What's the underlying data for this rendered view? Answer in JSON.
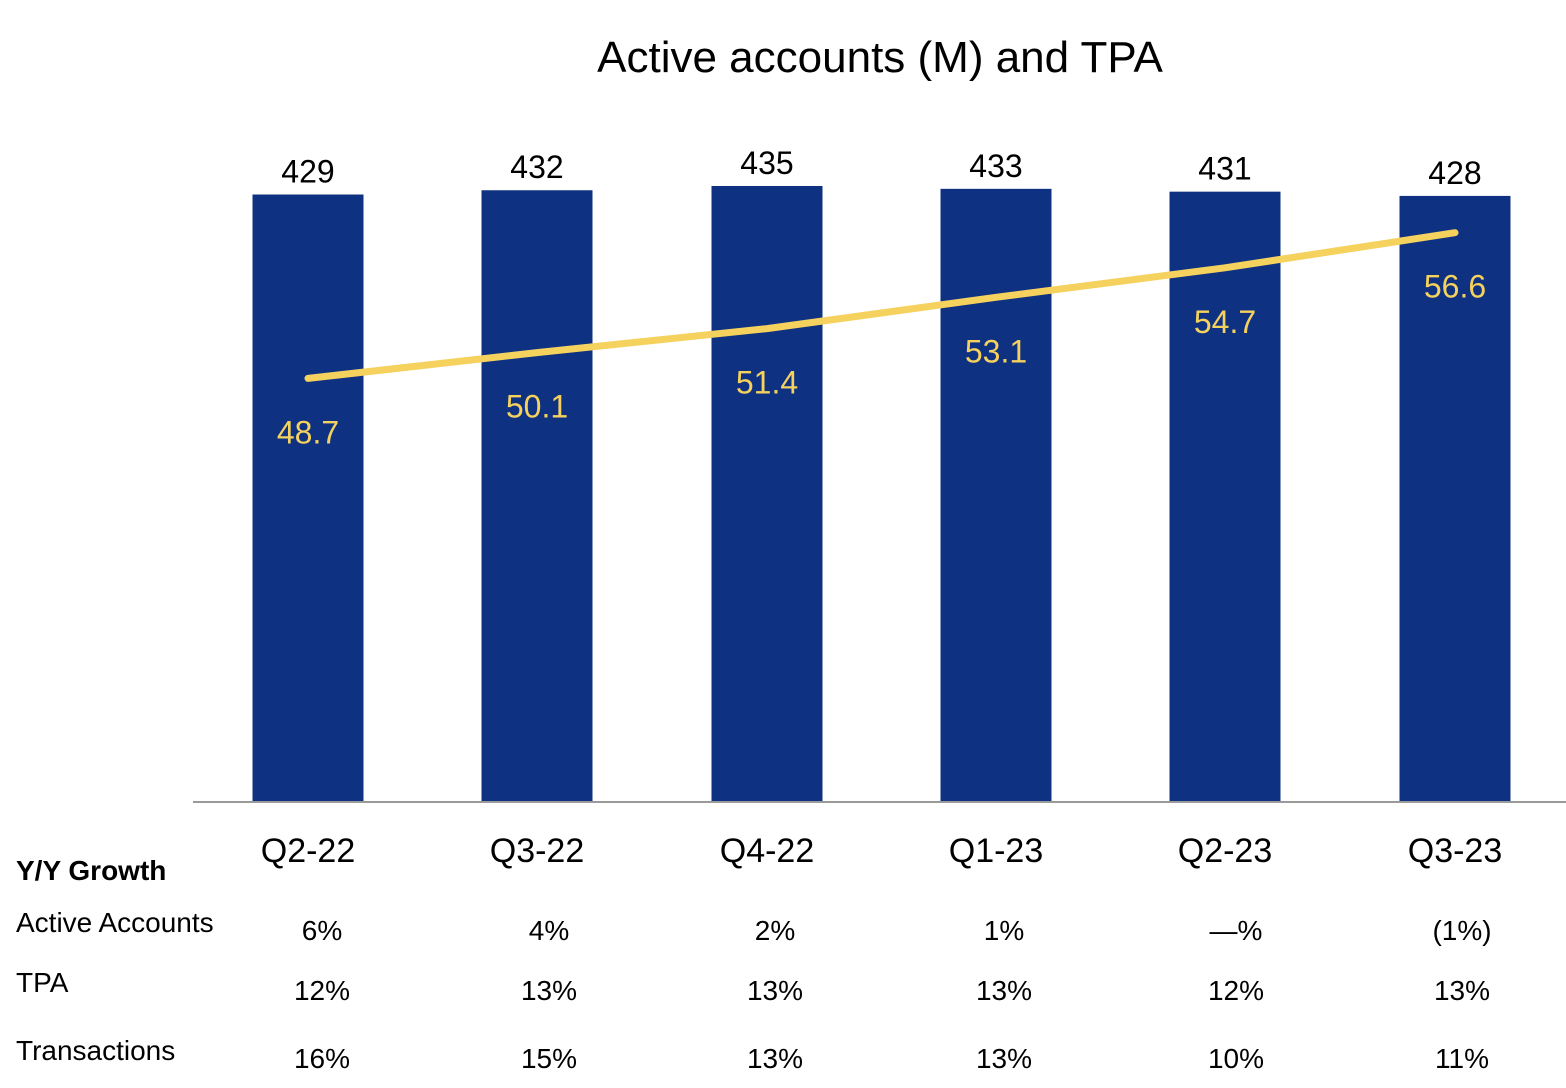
{
  "chart_data": {
    "type": "bar",
    "title": "Active accounts (M) and TPA",
    "categories": [
      "Q2-22",
      "Q3-22",
      "Q4-22",
      "Q1-23",
      "Q2-23",
      "Q3-23"
    ],
    "series": [
      {
        "name": "Active accounts (M)",
        "type": "bar",
        "values": [
          429,
          432,
          435,
          433,
          431,
          428
        ],
        "labels": [
          "429",
          "432",
          "435",
          "433",
          "431",
          "428"
        ]
      },
      {
        "name": "TPA",
        "type": "line",
        "values": [
          48.7,
          50.1,
          51.4,
          53.1,
          54.7,
          56.6
        ],
        "labels": [
          "48.7",
          "50.1",
          "51.4",
          "53.1",
          "54.7",
          "56.6"
        ]
      }
    ],
    "bar_ylim": [
      0,
      435
    ],
    "line_ylim": [
      15,
      60
    ],
    "colors": {
      "bar": "#0E3281",
      "line": "#F5D15E",
      "axis": "#9A9A9A"
    }
  },
  "growth_table": {
    "heading": "Y/Y Growth",
    "rows": [
      {
        "label": "Active Accounts",
        "values": [
          "6%",
          "4%",
          "2%",
          "1%",
          "—%",
          "(1%)"
        ]
      },
      {
        "label": "TPA",
        "values": [
          "12%",
          "13%",
          "13%",
          "13%",
          "12%",
          "13%"
        ]
      },
      {
        "label": "Transactions",
        "values": [
          "16%",
          "15%",
          "13%",
          "13%",
          "10%",
          "11%"
        ]
      }
    ]
  }
}
